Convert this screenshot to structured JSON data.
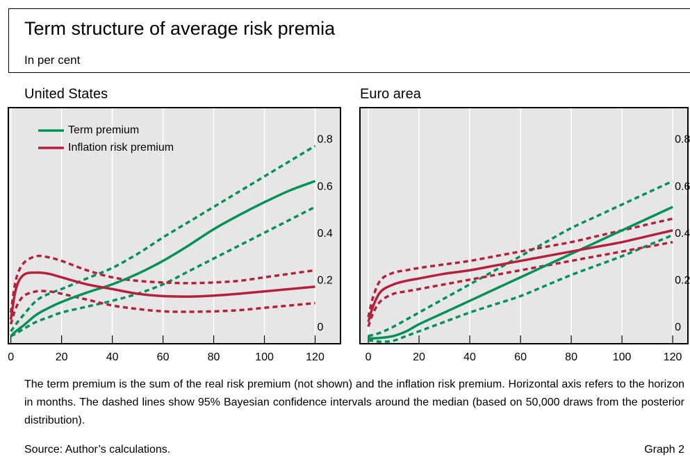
{
  "title": "Term structure of average risk premia",
  "subtitle": "In per cent",
  "note": "The term premium is the sum of the real risk premium (not shown) and the inflation risk premium. Horizontal axis refers to the horizon in months. The dashed lines show 95% Bayesian confidence intervals around the median (based on 50,000 draws from the posterior distribution).",
  "source": "Source: Author’s calculations.",
  "graph_label": "Graph 2",
  "chart_data": [
    {
      "type": "line",
      "title": "United States",
      "x": [
        0,
        2,
        5,
        10,
        15,
        20,
        30,
        40,
        50,
        60,
        70,
        80,
        90,
        100,
        110,
        120
      ],
      "series": [
        {
          "name": "Term premium",
          "color": "#00915a",
          "dashed": false,
          "values": [
            0,
            0.02,
            0.045,
            0.09,
            0.12,
            0.145,
            0.185,
            0.22,
            0.265,
            0.32,
            0.385,
            0.455,
            0.515,
            0.57,
            0.62,
            0.66
          ]
        },
        {
          "name": "Inflation risk premium",
          "color": "#b5203a",
          "dashed": false,
          "values": [
            0.07,
            0.2,
            0.26,
            0.27,
            0.265,
            0.25,
            0.22,
            0.2,
            0.18,
            0.17,
            0.168,
            0.172,
            0.18,
            0.19,
            0.2,
            0.21
          ]
        },
        {
          "color": "#00915a",
          "dashed": true,
          "values": [
            0.02,
            0.05,
            0.09,
            0.15,
            0.18,
            0.2,
            0.245,
            0.29,
            0.35,
            0.42,
            0.485,
            0.55,
            0.615,
            0.68,
            0.745,
            0.81
          ]
        },
        {
          "color": "#00915a",
          "dashed": true,
          "values": [
            0,
            0.01,
            0.03,
            0.06,
            0.08,
            0.1,
            0.125,
            0.15,
            0.18,
            0.22,
            0.275,
            0.33,
            0.385,
            0.44,
            0.495,
            0.55
          ]
        },
        {
          "color": "#b5203a",
          "dashed": true,
          "values": [
            0.1,
            0.24,
            0.31,
            0.34,
            0.335,
            0.32,
            0.28,
            0.25,
            0.235,
            0.228,
            0.225,
            0.228,
            0.235,
            0.25,
            0.265,
            0.28
          ]
        },
        {
          "color": "#b5203a",
          "dashed": true,
          "values": [
            0.05,
            0.12,
            0.17,
            0.19,
            0.19,
            0.18,
            0.155,
            0.13,
            0.115,
            0.105,
            0.103,
            0.105,
            0.11,
            0.12,
            0.13,
            0.14
          ]
        }
      ],
      "xlim": [
        -1,
        130
      ],
      "ylim": [
        -0.033,
        0.973
      ],
      "xticks": [
        0,
        20,
        40,
        60,
        80,
        100,
        120
      ],
      "yticks": [
        0,
        0.2,
        0.4,
        0.6,
        0.8
      ],
      "grid": true,
      "legend": "top-left"
    },
    {
      "type": "line",
      "title": "Euro area",
      "x": [
        0,
        2,
        5,
        10,
        15,
        20,
        30,
        40,
        50,
        60,
        70,
        80,
        90,
        100,
        110,
        120
      ],
      "series": [
        {
          "color": "#00915a",
          "dashed": false,
          "values": [
            -0.01,
            -0.01,
            -0.008,
            0,
            0.02,
            0.05,
            0.1,
            0.15,
            0.2,
            0.25,
            0.3,
            0.35,
            0.4,
            0.45,
            0.5,
            0.55
          ]
        },
        {
          "color": "#b5203a",
          "dashed": false,
          "values": [
            0.06,
            0.13,
            0.19,
            0.22,
            0.235,
            0.245,
            0.265,
            0.28,
            0.3,
            0.32,
            0.34,
            0.36,
            0.38,
            0.4,
            0.425,
            0.45
          ]
        },
        {
          "color": "#00915a",
          "dashed": true,
          "values": [
            0,
            0.005,
            0.015,
            0.04,
            0.07,
            0.1,
            0.16,
            0.22,
            0.28,
            0.34,
            0.4,
            0.46,
            0.51,
            0.56,
            0.61,
            0.66
          ]
        },
        {
          "color": "#00915a",
          "dashed": true,
          "values": [
            -0.02,
            -0.02,
            -0.025,
            -0.02,
            0,
            0.02,
            0.06,
            0.1,
            0.135,
            0.17,
            0.215,
            0.26,
            0.3,
            0.34,
            0.385,
            0.43
          ]
        },
        {
          "color": "#b5203a",
          "dashed": true,
          "values": [
            0.08,
            0.17,
            0.24,
            0.27,
            0.28,
            0.29,
            0.305,
            0.32,
            0.34,
            0.36,
            0.38,
            0.4,
            0.425,
            0.45,
            0.475,
            0.5
          ]
        },
        {
          "color": "#b5203a",
          "dashed": true,
          "values": [
            0.04,
            0.1,
            0.15,
            0.18,
            0.19,
            0.2,
            0.22,
            0.24,
            0.26,
            0.28,
            0.3,
            0.32,
            0.34,
            0.36,
            0.38,
            0.4
          ]
        }
      ],
      "xlim": [
        -3.3,
        126
      ],
      "ylim": [
        -0.033,
        0.973
      ],
      "xticks": [
        0,
        20,
        40,
        60,
        80,
        100,
        120
      ],
      "yticks": [
        0,
        0.2,
        0.4,
        0.6,
        0.8
      ],
      "grid": true,
      "legend": null
    }
  ]
}
